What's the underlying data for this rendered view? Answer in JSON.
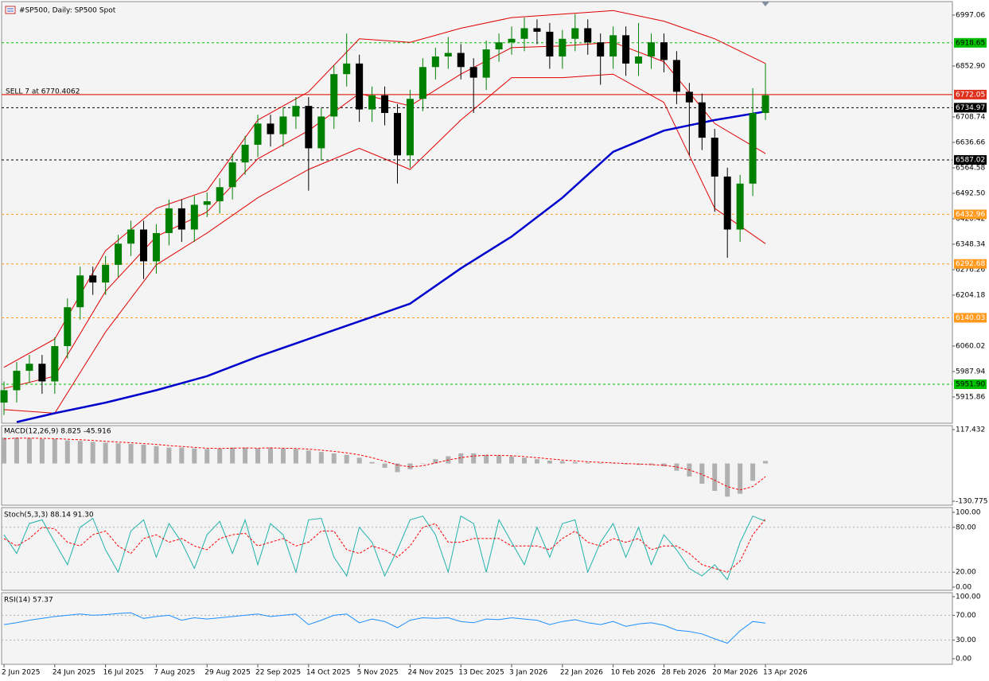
{
  "chart_data": [
    {
      "type": "candlestick",
      "title": "#SP500, Daily:  SP500 Spot",
      "annotation": "SELL 7 at 6770.4062",
      "x": [
        0,
        1,
        2,
        3,
        4,
        5,
        6,
        7,
        8,
        9,
        10,
        11,
        12,
        13,
        14,
        15,
        16,
        17,
        18,
        19,
        20,
        21,
        22,
        23,
        24,
        25,
        26,
        27,
        28,
        29,
        30,
        31,
        32,
        33,
        34,
        35,
        36,
        37,
        38,
        39,
        40,
        41,
        42,
        43,
        44,
        45,
        46,
        47,
        48,
        49,
        50,
        51,
        52,
        53,
        54,
        55,
        56,
        57,
        58,
        59,
        60
      ],
      "open": [
        5900,
        5935,
        5990,
        6010,
        5960,
        6060,
        6170,
        6260,
        6240,
        6290,
        6350,
        6390,
        6300,
        6380,
        6450,
        6390,
        6460,
        6470,
        6510,
        6580,
        6630,
        6690,
        6660,
        6710,
        6740,
        6620,
        6710,
        6830,
        6860,
        6730,
        6770,
        6720,
        6600,
        6760,
        6850,
        6880,
        6890,
        6850,
        6820,
        6900,
        6920,
        6930,
        6960,
        6950,
        6880,
        6930,
        6960,
        6920,
        6880,
        6940,
        6860,
        6880,
        6920,
        6870,
        6780,
        6750,
        6650,
        6540,
        6390,
        6520,
        6720
      ],
      "high": [
        5960,
        6015,
        6035,
        6035,
        6085,
        6195,
        6285,
        6285,
        6315,
        6375,
        6415,
        6415,
        6405,
        6475,
        6475,
        6485,
        6495,
        6535,
        6605,
        6655,
        6715,
        6715,
        6735,
        6765,
        6765,
        6735,
        6855,
        6945,
        6885,
        6795,
        6795,
        6745,
        6785,
        6875,
        6905,
        6935,
        6915,
        6875,
        6925,
        6945,
        6965,
        6990,
        6985,
        6975,
        6955,
        7000,
        6985,
        6945,
        6965,
        6965,
        6975,
        6945,
        6945,
        6895,
        6805,
        6775,
        6675,
        6565,
        6545,
        6790,
        6860
      ],
      "low": [
        5865,
        5900,
        5955,
        5925,
        5925,
        6025,
        6135,
        6205,
        6205,
        6255,
        6315,
        6250,
        6265,
        6345,
        6355,
        6355,
        6425,
        6435,
        6475,
        6545,
        6595,
        6625,
        6625,
        6675,
        6500,
        6585,
        6675,
        6795,
        6695,
        6695,
        6685,
        6520,
        6565,
        6725,
        6815,
        6845,
        6815,
        6720,
        6785,
        6865,
        6885,
        6895,
        6915,
        6845,
        6845,
        6895,
        6885,
        6800,
        6845,
        6825,
        6825,
        6845,
        6835,
        6745,
        6600,
        6615,
        6440,
        6310,
        6355,
        6485,
        6700
      ],
      "close": [
        5935,
        5990,
        6010,
        5960,
        6060,
        6170,
        6260,
        6240,
        6290,
        6350,
        6390,
        6300,
        6380,
        6450,
        6390,
        6460,
        6470,
        6510,
        6580,
        6630,
        6690,
        6660,
        6710,
        6740,
        6620,
        6710,
        6830,
        6860,
        6730,
        6770,
        6720,
        6600,
        6760,
        6850,
        6880,
        6890,
        6850,
        6820,
        6900,
        6920,
        6930,
        6960,
        6950,
        6880,
        6930,
        6960,
        6920,
        6880,
        6940,
        6860,
        6880,
        6920,
        6870,
        6780,
        6750,
        6650,
        6540,
        6390,
        6520,
        6720,
        6770
      ],
      "up_color": "#008000",
      "down_color": "#000000",
      "series": [
        {
          "color": "#e00000",
          "width": 1,
          "x": [
            0,
            4,
            8,
            12,
            16,
            20,
            24,
            28,
            32,
            36,
            40,
            44,
            48,
            52,
            56,
            60
          ],
          "values": [
            6000,
            6080,
            6330,
            6450,
            6500,
            6700,
            6780,
            6930,
            6920,
            6960,
            6990,
            7000,
            7010,
            6980,
            6930,
            6860
          ]
        },
        {
          "color": "#e00000",
          "width": 1,
          "x": [
            0,
            4,
            8,
            12,
            16,
            20,
            24,
            28,
            32,
            36,
            40,
            44,
            48,
            52,
            56,
            60
          ],
          "values": [
            5940,
            5975,
            6215,
            6370,
            6440,
            6590,
            6670,
            6775,
            6740,
            6830,
            6905,
            6910,
            6920,
            6865,
            6690,
            6605
          ]
        },
        {
          "color": "#e00000",
          "width": 1,
          "x": [
            0,
            4,
            8,
            12,
            16,
            20,
            24,
            28,
            32,
            36,
            40,
            44,
            48,
            52,
            56,
            60
          ],
          "values": [
            5880,
            5870,
            6100,
            6290,
            6380,
            6480,
            6560,
            6620,
            6560,
            6700,
            6820,
            6820,
            6830,
            6750,
            6450,
            6350
          ]
        },
        {
          "color": "#0000cd",
          "width": 2.5,
          "x": [
            1,
            4,
            8,
            12,
            16,
            20,
            24,
            28,
            32,
            36,
            40,
            44,
            48,
            52,
            56,
            60
          ],
          "values": [
            5845,
            5870,
            5900,
            5935,
            5975,
            6030,
            6080,
            6130,
            6180,
            6280,
            6370,
            6480,
            6610,
            6670,
            6700,
            6724
          ]
        }
      ],
      "levels": [
        {
          "value": 6918.65,
          "color": "#00c000",
          "style": "dashed",
          "label_color": "#000000"
        },
        {
          "value": 6772.05,
          "color": "#e0301e",
          "style": "solid",
          "label_color": "#ffffff"
        },
        {
          "value": 6734.97,
          "color": "#000000",
          "style": "dashed",
          "label_color": "#ffffff"
        },
        {
          "value": 6587.02,
          "color": "#000000",
          "style": "dashed",
          "label_color": "#ffffff"
        },
        {
          "value": 6432.96,
          "color": "#ff9a1f",
          "style": "dashed",
          "label_color": "#ffffff"
        },
        {
          "value": 6292.68,
          "color": "#ff9a1f",
          "style": "dashed",
          "label_color": "#ffffff"
        },
        {
          "value": 6140.03,
          "color": "#ff9a1f",
          "style": "dashed",
          "label_color": "#ffffff"
        },
        {
          "value": 5951.9,
          "label": "5951.90",
          "color": "#00c000",
          "style": "dashed",
          "label_color": "#000000"
        }
      ],
      "xlim": [
        -0.19,
        74.73
      ],
      "xticks": [
        {
          "value": 0,
          "label": "2 Jun 2025"
        },
        {
          "value": 4,
          "label": "24 Jun 2025"
        },
        {
          "value": 8,
          "label": "16 Jul 2025"
        },
        {
          "value": 12,
          "label": "7 Aug 2025"
        },
        {
          "value": 16,
          "label": "29 Aug 2025"
        },
        {
          "value": 20,
          "label": "22 Sep 2025"
        },
        {
          "value": 24,
          "label": "14 Oct 2025"
        },
        {
          "value": 28,
          "label": "5 Nov 2025"
        },
        {
          "value": 32,
          "label": "24 Nov 2025"
        },
        {
          "value": 36,
          "label": "13 Dec 2025"
        },
        {
          "value": 40,
          "label": "3 Jan 2026"
        },
        {
          "value": 44,
          "label": "22 Jan 2026"
        },
        {
          "value": 48,
          "label": "10 Feb 2026"
        },
        {
          "value": 52,
          "label": "28 Feb 2026"
        },
        {
          "value": 56,
          "label": "20 Mar 2026"
        },
        {
          "value": 60,
          "label": "13 Apr 2026"
        }
      ],
      "ylim": [
        5841.55,
        7035.35
      ],
      "yticks": [
        6997.06,
        {
          "value": 6852.9,
          "label": "6852.90"
        },
        6708.74,
        6636.66,
        6564.58,
        {
          "value": 6492.5,
          "label": "6492.50"
        },
        6420.42,
        6348.34,
        6276.26,
        6204.18,
        6060.02,
        5987.94,
        5915.86
      ]
    },
    {
      "type": "macd",
      "title": "MACD(12,26,9) 8.825 -45.916",
      "series": [
        {
          "color": "#b0b0b0",
          "style": "histogram",
          "values": [
            90,
            90,
            88,
            85,
            85,
            80,
            78,
            75,
            72,
            70,
            68,
            65,
            60,
            55,
            55,
            52,
            50,
            52,
            55,
            55,
            52,
            55,
            52,
            50,
            45,
            40,
            35,
            30,
            20,
            5,
            -15,
            -30,
            -20,
            0,
            15,
            25,
            35,
            35,
            30,
            28,
            25,
            20,
            15,
            10,
            8,
            5,
            3,
            2,
            0,
            -3,
            -5,
            -5,
            -10,
            -25,
            -45,
            -70,
            -95,
            -115,
            -105,
            -60,
            8.825
          ]
        },
        {
          "color": "#ff0000",
          "style": "dashed",
          "values": [
            85,
            88,
            88,
            87,
            86,
            84,
            82,
            80,
            77,
            74,
            72,
            69,
            66,
            62,
            59,
            56,
            53,
            52,
            53,
            54,
            53,
            54,
            53,
            52,
            50,
            46,
            42,
            37,
            30,
            20,
            8,
            -5,
            -12,
            -8,
            2,
            12,
            20,
            26,
            28,
            28,
            27,
            24,
            20,
            16,
            12,
            9,
            6,
            4,
            2,
            0,
            -2,
            -4,
            -6,
            -12,
            -22,
            -38,
            -58,
            -80,
            -92,
            -80,
            -45.916
          ]
        }
      ],
      "ylim": [
        -144.56,
        131.22
      ],
      "yticks": [
        117.432,
        -130.775
      ]
    },
    {
      "type": "line",
      "title": "Stoch(5,3,3) 88.14 91.30",
      "series": [
        {
          "color": "#20b2aa",
          "style": "solid",
          "values": [
            70,
            45,
            85,
            90,
            60,
            30,
            80,
            92,
            50,
            20,
            75,
            90,
            40,
            85,
            60,
            25,
            70,
            88,
            45,
            90,
            30,
            85,
            70,
            20,
            90,
            92,
            40,
            15,
            80,
            60,
            15,
            50,
            90,
            95,
            70,
            20,
            95,
            85,
            20,
            90,
            60,
            30,
            80,
            40,
            85,
            90,
            20,
            60,
            85,
            40,
            80,
            30,
            70,
            50,
            25,
            15,
            30,
            10,
            60,
            95,
            88.14
          ]
        },
        {
          "color": "#ff0000",
          "style": "dashed",
          "values": [
            65,
            55,
            65,
            80,
            78,
            60,
            55,
            70,
            75,
            55,
            45,
            65,
            70,
            60,
            65,
            55,
            50,
            65,
            70,
            72,
            55,
            60,
            65,
            55,
            60,
            75,
            75,
            50,
            45,
            55,
            50,
            40,
            55,
            80,
            85,
            60,
            60,
            65,
            65,
            65,
            55,
            55,
            55,
            50,
            65,
            75,
            60,
            55,
            65,
            60,
            65,
            50,
            55,
            55,
            45,
            30,
            25,
            20,
            35,
            70,
            91.3
          ]
        }
      ],
      "ylim": [
        -4.26,
        106.38
      ],
      "yticks": [
        {
          "value": 100,
          "label": "100.00"
        },
        {
          "value": 80,
          "label": "80.00"
        },
        {
          "value": 20,
          "label": "20.00"
        },
        {
          "value": 0,
          "label": "0.00"
        }
      ]
    },
    {
      "type": "line",
      "title": "RSI(14) 57.37",
      "series": [
        {
          "color": "#1e90ff",
          "style": "solid",
          "values": [
            55,
            58,
            62,
            65,
            68,
            70,
            72,
            70,
            71,
            73,
            74,
            65,
            68,
            70,
            62,
            66,
            64,
            66,
            68,
            70,
            72,
            68,
            70,
            72,
            55,
            62,
            70,
            72,
            58,
            64,
            60,
            50,
            62,
            66,
            65,
            66,
            60,
            58,
            64,
            63,
            66,
            64,
            62,
            55,
            60,
            63,
            58,
            55,
            60,
            52,
            56,
            58,
            54,
            46,
            44,
            40,
            32,
            25,
            45,
            60,
            57.37
          ]
        }
      ],
      "ylim": [
        -8.97,
        106.41
      ],
      "yticks": [
        {
          "value": 100,
          "label": "100.00"
        },
        {
          "value": 70,
          "label": "70.00"
        },
        {
          "value": 30,
          "label": "30.00"
        },
        {
          "value": 0,
          "label": "0.00"
        }
      ]
    }
  ]
}
